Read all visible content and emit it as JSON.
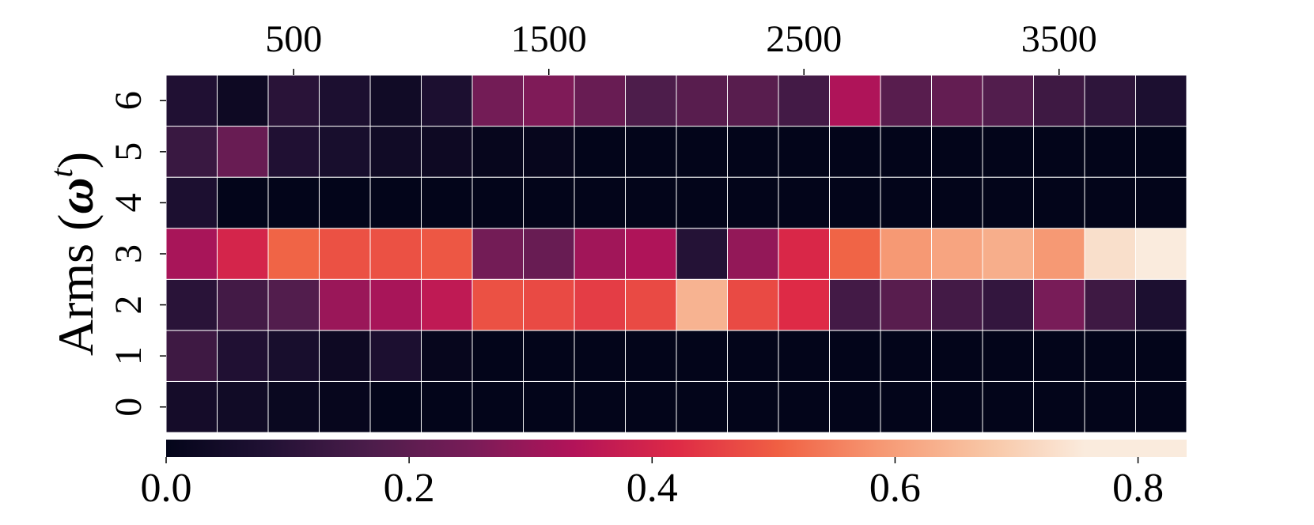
{
  "chart_data": {
    "type": "heatmap",
    "title": "",
    "xlabel": "",
    "ylabel": "Arms (",
    "ylabel_symbol": "ω",
    "ylabel_superscript": "t",
    "ylabel_close": ")",
    "x_axis_position": "top",
    "x_ticks": [
      500,
      1500,
      2500,
      3500
    ],
    "x_range": [
      0,
      4000
    ],
    "n_columns": 20,
    "rows": [
      0,
      1,
      2,
      3,
      4,
      5,
      6
    ],
    "y_tick_labels": [
      "0",
      "1",
      "2",
      "3",
      "4",
      "5",
      "6"
    ],
    "values": [
      [
        0.05,
        0.04,
        0.02,
        0.01,
        0.0,
        0.0,
        0.0,
        0.0,
        0.0,
        0.0,
        0.0,
        0.0,
        0.0,
        0.0,
        0.0,
        0.0,
        0.0,
        0.0,
        0.0,
        0.0
      ],
      [
        0.14,
        0.08,
        0.06,
        0.03,
        0.07,
        0.01,
        0.0,
        0.0,
        0.0,
        0.0,
        0.0,
        0.0,
        0.0,
        0.0,
        0.0,
        0.0,
        0.0,
        0.0,
        0.0,
        0.0
      ],
      [
        0.1,
        0.15,
        0.18,
        0.3,
        0.32,
        0.36,
        0.48,
        0.47,
        0.45,
        0.47,
        0.64,
        0.47,
        0.42,
        0.15,
        0.19,
        0.15,
        0.12,
        0.25,
        0.14,
        0.07
      ],
      [
        0.32,
        0.4,
        0.51,
        0.48,
        0.48,
        0.49,
        0.24,
        0.22,
        0.31,
        0.33,
        0.09,
        0.29,
        0.41,
        0.51,
        0.59,
        0.61,
        0.63,
        0.59,
        0.73,
        0.84
      ],
      [
        0.07,
        0.0,
        0.0,
        0.0,
        0.0,
        0.0,
        0.0,
        0.0,
        0.0,
        0.0,
        0.0,
        0.0,
        0.0,
        0.0,
        0.0,
        0.0,
        0.0,
        0.0,
        0.0,
        0.0
      ],
      [
        0.13,
        0.22,
        0.08,
        0.06,
        0.04,
        0.03,
        0.01,
        0.01,
        0.0,
        0.0,
        0.0,
        0.0,
        0.0,
        0.0,
        0.0,
        0.0,
        0.0,
        0.0,
        0.0,
        0.0
      ],
      [
        0.08,
        0.03,
        0.1,
        0.07,
        0.04,
        0.07,
        0.24,
        0.26,
        0.22,
        0.17,
        0.19,
        0.19,
        0.15,
        0.33,
        0.19,
        0.21,
        0.18,
        0.14,
        0.11,
        0.07
      ]
    ],
    "colorbar": {
      "colormap": "rocket",
      "range": [
        0.0,
        0.84
      ],
      "ticks": [
        0.0,
        0.2,
        0.4,
        0.6,
        0.8
      ],
      "tick_labels": [
        "0.0",
        "0.2",
        "0.4",
        "0.6",
        "0.8"
      ],
      "orientation": "horizontal",
      "placement": "bottom"
    },
    "grid_line_color": "#ffffff"
  }
}
